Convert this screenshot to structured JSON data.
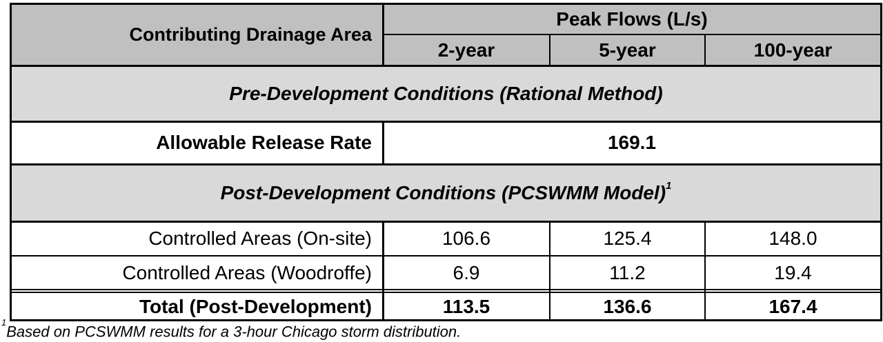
{
  "header": {
    "row_label": "Contributing Drainage Area",
    "group": "Peak Flows (L/s)",
    "columns": [
      "2-year",
      "5-year",
      "100-year"
    ]
  },
  "pre_section": "Pre-Development Conditions (Rational Method)",
  "allowable": {
    "label": "Allowable Release Rate",
    "value": "169.1"
  },
  "post_section": {
    "text": "Post-Development Conditions (PCSWMM Model)",
    "sup": "1"
  },
  "rows": [
    {
      "label": "Controlled Areas (On-site)",
      "values": [
        "106.6",
        "125.4",
        "148.0"
      ]
    },
    {
      "label": "Controlled Areas (Woodroffe)",
      "values": [
        "6.9",
        "11.2",
        "19.4"
      ]
    }
  ],
  "total": {
    "label": "Total (Post-Development)",
    "values": [
      "113.5",
      "136.6",
      "167.4"
    ]
  },
  "footnote": {
    "sup": "1",
    "text": "Based on PCSWMM results for a 3-hour Chicago storm distribution."
  },
  "colors": {
    "header_bg": "#c0c0c0",
    "section_bg": "#d9d9d9"
  }
}
